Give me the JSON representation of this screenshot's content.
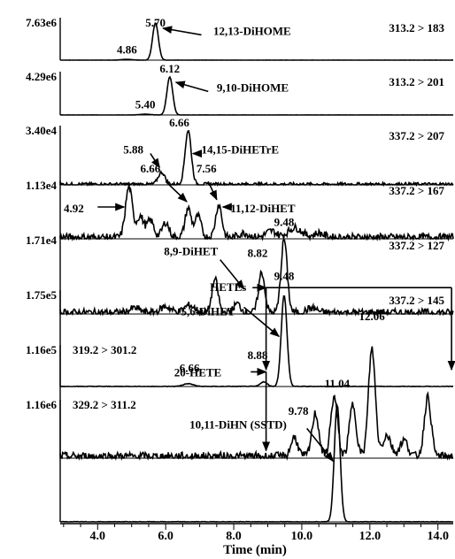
{
  "chart_data": {
    "type": "line",
    "xlabel": "Time (min)",
    "xlim": [
      2.9,
      14.45
    ],
    "xticks": [
      "4.0",
      "6.0",
      "8.0",
      "10.0",
      "12.0",
      "14.0"
    ],
    "xtick_values": [
      4,
      6,
      8,
      10,
      12,
      14
    ],
    "panels": [
      {
        "ymax_label": "7.63e6",
        "transition": "313.2 > 183",
        "transition_side": "right",
        "baseline_noise": 0.002,
        "peaks": [
          {
            "x": 4.86,
            "h": 0.02,
            "w": 0.15
          },
          {
            "x": 5.7,
            "h": 1.0,
            "w": 0.085
          }
        ],
        "labels": [
          {
            "text": "5.70",
            "x": 5.7,
            "y": 0.9
          },
          {
            "text": "4.86",
            "x": 4.86,
            "y": 0.18
          },
          {
            "text": "12,13-DiHOME",
            "x": 7.4,
            "y": 0.68
          }
        ],
        "arrows": [
          {
            "x1": 7.05,
            "y1": 0.68,
            "x2": 5.92,
            "y2": 0.86
          }
        ]
      },
      {
        "ymax_label": "4.29e6",
        "transition": "313.2 > 201",
        "transition_side": "right",
        "baseline_noise": 0.002,
        "peaks": [
          {
            "x": 5.4,
            "h": 0.02,
            "w": 0.15
          },
          {
            "x": 6.12,
            "h": 1.0,
            "w": 0.085
          }
        ],
        "labels": [
          {
            "text": "6.12",
            "x": 6.12,
            "y": 1.12
          },
          {
            "text": "5.40",
            "x": 5.4,
            "y": 0.18
          },
          {
            "text": "9,10-DiHOME",
            "x": 7.5,
            "y": 0.62
          }
        ],
        "arrows": [
          {
            "x1": 7.25,
            "y1": 0.62,
            "x2": 6.3,
            "y2": 0.86
          }
        ]
      },
      {
        "ymax_label": "3.40e4",
        "transition": "337.2 > 207",
        "transition_side": "right",
        "baseline_noise": 0.03,
        "peaks": [
          {
            "x": 5.88,
            "h": 0.22,
            "w": 0.1
          },
          {
            "x": 6.66,
            "h": 1.0,
            "w": 0.09
          }
        ],
        "labels": [
          {
            "text": "6.66",
            "x": 6.4,
            "y": 1.08
          },
          {
            "text": "5.88",
            "x": 5.05,
            "y": 0.58
          },
          {
            "text": "14,15-DiHETrE",
            "x": 7.05,
            "y": 0.58
          }
        ],
        "arrows": [
          {
            "x1": 5.55,
            "y1": 0.58,
            "x2": 5.82,
            "y2": 0.32
          },
          {
            "x1": 7.02,
            "y1": 0.58,
            "x2": 6.8,
            "y2": 0.58
          }
        ]
      },
      {
        "ymax_label": "1.13e4",
        "transition": "337.2 > 167",
        "transition_side": "right",
        "baseline_noise": 0.07,
        "peaks": [
          {
            "x": 4.92,
            "h": 0.95,
            "w": 0.1
          },
          {
            "x": 5.25,
            "h": 0.4,
            "w": 0.1
          },
          {
            "x": 5.55,
            "h": 0.32,
            "w": 0.1
          },
          {
            "x": 6.0,
            "h": 0.28,
            "w": 0.1
          },
          {
            "x": 6.66,
            "h": 0.55,
            "w": 0.09
          },
          {
            "x": 6.95,
            "h": 0.4,
            "w": 0.09
          },
          {
            "x": 7.56,
            "h": 0.62,
            "w": 0.09
          },
          {
            "x": 8.3,
            "h": 0.08,
            "w": 0.15
          },
          {
            "x": 9.1,
            "h": 0.12,
            "w": 0.15
          },
          {
            "x": 9.8,
            "h": 0.18,
            "w": 0.2
          },
          {
            "x": 10.5,
            "h": 0.08,
            "w": 0.15
          }
        ],
        "labels": [
          {
            "text": "6.66",
            "x": 5.55,
            "y": 1.25
          },
          {
            "text": "7.56",
            "x": 7.2,
            "y": 1.25
          },
          {
            "text": "4.92",
            "x": 3.3,
            "y": 0.5
          },
          {
            "text": "11,12-DiHET",
            "x": 7.9,
            "y": 0.5
          }
        ],
        "arrows": [
          {
            "x1": 4.0,
            "y1": 0.6,
            "x2": 4.78,
            "y2": 0.6
          },
          {
            "x1": 6.0,
            "y1": 1.08,
            "x2": 6.62,
            "y2": 0.7
          },
          {
            "x1": 7.25,
            "y1": 1.08,
            "x2": 7.5,
            "y2": 0.74
          },
          {
            "x1": 7.95,
            "y1": 0.6,
            "x2": 7.68,
            "y2": 0.6
          }
        ]
      },
      {
        "ymax_label": "1.71e4",
        "transition": "337.2 > 127",
        "transition_side": "right",
        "baseline_noise": 0.05,
        "peaks": [
          {
            "x": 5.1,
            "h": 0.06,
            "w": 0.15
          },
          {
            "x": 6.0,
            "h": 0.08,
            "w": 0.15
          },
          {
            "x": 6.7,
            "h": 0.1,
            "w": 0.15
          },
          {
            "x": 7.45,
            "h": 0.45,
            "w": 0.09
          },
          {
            "x": 8.1,
            "h": 0.12,
            "w": 0.1
          },
          {
            "x": 8.82,
            "h": 0.55,
            "w": 0.09
          },
          {
            "x": 9.48,
            "h": 1.0,
            "w": 0.09
          },
          {
            "x": 10.3,
            "h": 0.06,
            "w": 0.15
          }
        ],
        "labels": [
          {
            "text": "9.48",
            "x": 9.48,
            "y": 1.2
          },
          {
            "text": "8.82",
            "x": 8.7,
            "y": 0.78
          },
          {
            "text": "8,9-DiHET",
            "x": 5.95,
            "y": 0.8
          }
        ],
        "arrows": [
          {
            "x1": 7.6,
            "y1": 0.74,
            "x2": 8.3,
            "y2": 0.34
          }
        ]
      },
      {
        "ymax_label": "1.75e5",
        "transition": "337.2 > 145",
        "transition_side": "right",
        "baseline_noise": 0.003,
        "peaks": [
          {
            "x": 6.66,
            "h": 0.03,
            "w": 0.15
          },
          {
            "x": 8.88,
            "h": 0.05,
            "w": 0.1
          },
          {
            "x": 9.48,
            "h": 1.0,
            "w": 0.085
          }
        ],
        "labels": [
          {
            "text": "9.48",
            "x": 9.48,
            "y": 1.17
          },
          {
            "text": "8.88",
            "x": 8.7,
            "y": 0.3
          },
          {
            "text": "6.66",
            "x": 6.7,
            "y": 0.16
          },
          {
            "text": "5,6-DiHET",
            "x": 6.45,
            "y": 0.78
          }
        ],
        "arrows": [
          {
            "x1": 8.3,
            "y1": 0.87,
            "x2": 9.33,
            "y2": 0.55
          }
        ]
      },
      {
        "ymax_label": "1.16e5",
        "transition": "319.2 > 301.2",
        "transition_side": "left",
        "baseline_noise": 0.04,
        "peaks": [
          {
            "x": 9.78,
            "h": 0.18,
            "w": 0.1
          },
          {
            "x": 10.4,
            "h": 0.4,
            "w": 0.1
          },
          {
            "x": 10.95,
            "h": 0.55,
            "w": 0.1
          },
          {
            "x": 11.5,
            "h": 0.48,
            "w": 0.1
          },
          {
            "x": 12.06,
            "h": 1.0,
            "w": 0.1
          },
          {
            "x": 12.5,
            "h": 0.2,
            "w": 0.12
          },
          {
            "x": 13.0,
            "h": 0.15,
            "w": 0.12
          },
          {
            "x": 13.7,
            "h": 0.55,
            "w": 0.1
          }
        ],
        "labels": [
          {
            "text": "12.06",
            "x": 12.06,
            "y": 1.28
          },
          {
            "text": "9.78",
            "x": 9.9,
            "y": 0.4
          },
          {
            "text": "HETEs",
            "x": 7.3,
            "y": 1.55
          },
          {
            "text": "20-HETE",
            "x": 6.25,
            "y": 0.76
          }
        ],
        "arrows": [
          {
            "x1": 8.55,
            "y1": 1.58,
            "x2": 8.95,
            "y2": 1.58
          },
          {
            "x1": 8.5,
            "y1": 0.8,
            "x2": 8.95,
            "y2": 0.8
          }
        ],
        "brackets": [
          {
            "pts": [
              [
                8.95,
                1.58
              ],
              [
                14.4,
                1.58
              ]
            ]
          },
          {
            "pts": [
              [
                14.4,
                1.58
              ],
              [
                14.4,
                0.82
              ]
            ],
            "arrow": true
          },
          {
            "pts": [
              [
                8.95,
                1.58
              ],
              [
                8.95,
                0.82
              ]
            ],
            "arrow": true
          },
          {
            "pts": [
              [
                8.95,
                0.8
              ],
              [
                8.95,
                0.07
              ]
            ],
            "arrow": true
          }
        ]
      },
      {
        "ymax_label": "1.16e6",
        "transition": "329.2 > 311.2",
        "transition_side": "left",
        "baseline_noise": 0.002,
        "peaks": [
          {
            "x": 11.04,
            "h": 1.0,
            "w": 0.085
          }
        ],
        "labels": [
          {
            "text": "11.04",
            "x": 11.04,
            "y": 1.15
          },
          {
            "text": "10,11-DiHN (SSTD)",
            "x": 6.7,
            "y": 0.8
          }
        ],
        "arrows": [
          {
            "x1": 10.15,
            "y1": 0.8,
            "x2": 10.92,
            "y2": 0.52
          }
        ]
      }
    ]
  }
}
